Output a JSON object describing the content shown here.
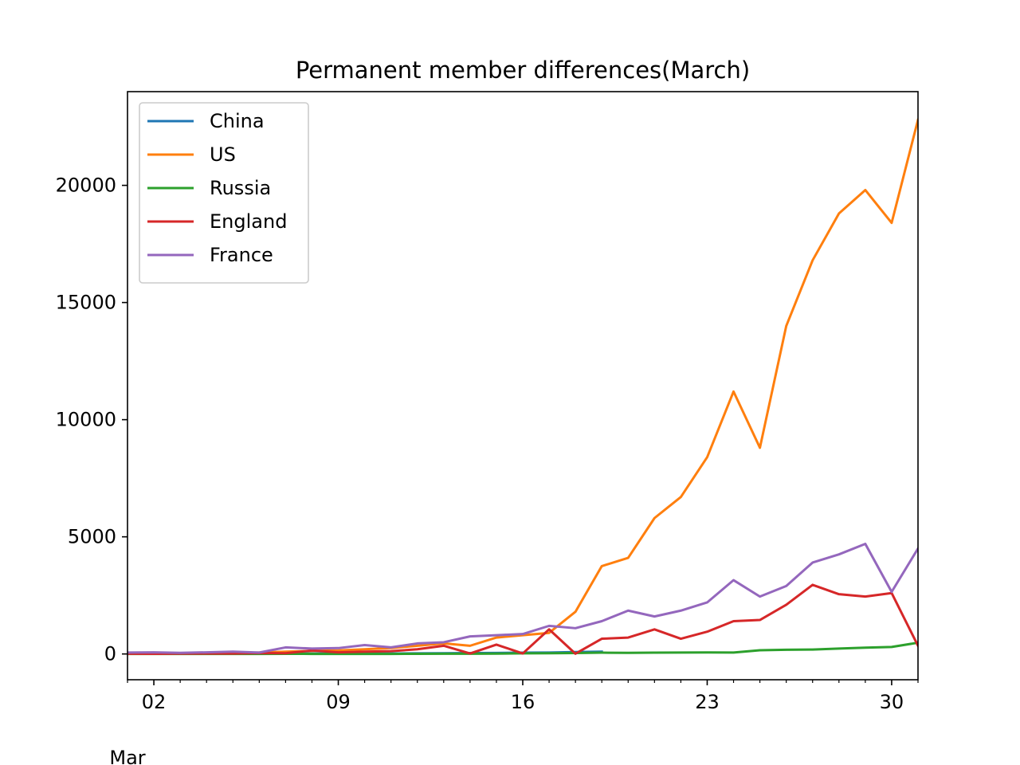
{
  "chart_data": {
    "type": "line",
    "title": "Permanent member differences(March)",
    "xlabel": "",
    "ylabel": "",
    "x_start_day": 1,
    "x_end_day": 31,
    "xlim": [
      1,
      31
    ],
    "ylim": [
      -1100,
      24000
    ],
    "x_major_ticks": [
      {
        "day": 2,
        "label": "02"
      },
      {
        "day": 9,
        "label": "09"
      },
      {
        "day": 16,
        "label": "16"
      },
      {
        "day": 23,
        "label": "23"
      },
      {
        "day": 30,
        "label": "30"
      }
    ],
    "x_month_label": "Mar",
    "y_ticks": [
      {
        "value": 0,
        "label": "0"
      },
      {
        "value": 5000,
        "label": "5000"
      },
      {
        "value": 10000,
        "label": "10000"
      },
      {
        "value": 15000,
        "label": "15000"
      },
      {
        "value": 20000,
        "label": "20000"
      }
    ],
    "grid": false,
    "legend_position": "upper-left",
    "series": [
      {
        "name": "China",
        "color": "#1f77b4",
        "x": [
          1,
          2,
          3,
          4,
          5,
          6,
          7,
          8,
          9,
          10,
          11,
          12,
          13,
          14,
          15,
          16,
          17,
          18,
          19
        ],
        "values": [
          31,
          33,
          29,
          27,
          25,
          20,
          15,
          18,
          19,
          22,
          20,
          25,
          30,
          40,
          45,
          55,
          60,
          80,
          100
        ]
      },
      {
        "name": "US",
        "color": "#ff7f0e",
        "x": [
          1,
          2,
          3,
          4,
          5,
          6,
          7,
          8,
          9,
          10,
          11,
          12,
          13,
          14,
          15,
          16,
          17,
          18,
          19,
          20,
          21,
          22,
          23,
          24,
          25,
          26,
          27,
          28,
          29,
          30,
          31
        ],
        "values": [
          5,
          10,
          15,
          25,
          40,
          60,
          100,
          130,
          150,
          200,
          250,
          350,
          450,
          350,
          700,
          800,
          900,
          1800,
          3750,
          4100,
          5800,
          6700,
          8400,
          11200,
          8800,
          14000,
          16800,
          18800,
          19800,
          18400,
          22800
        ]
      },
      {
        "name": "Russia",
        "color": "#2ca02c",
        "x": [
          1,
          2,
          3,
          4,
          5,
          6,
          7,
          8,
          9,
          10,
          11,
          12,
          13,
          14,
          15,
          16,
          17,
          18,
          19,
          20,
          21,
          22,
          23,
          24,
          25,
          26,
          27,
          28,
          29,
          30,
          31
        ],
        "values": [
          0,
          0,
          0,
          0,
          0,
          2,
          5,
          3,
          3,
          3,
          3,
          5,
          8,
          10,
          15,
          25,
          30,
          40,
          55,
          50,
          55,
          60,
          65,
          60,
          160,
          180,
          190,
          230,
          270,
          300,
          480
        ]
      },
      {
        "name": "England",
        "color": "#d62728",
        "x": [
          1,
          2,
          3,
          4,
          5,
          6,
          7,
          8,
          9,
          10,
          11,
          12,
          13,
          14,
          15,
          16,
          17,
          18,
          19,
          20,
          21,
          22,
          23,
          24,
          25,
          26,
          27,
          28,
          29,
          30,
          31
        ],
        "values": [
          10,
          5,
          15,
          20,
          20,
          40,
          30,
          150,
          70,
          100,
          120,
          200,
          350,
          20,
          400,
          20,
          1050,
          10,
          650,
          700,
          1050,
          650,
          950,
          1400,
          1450,
          2100,
          2950,
          2550,
          2450,
          2600,
          350
        ]
      },
      {
        "name": "France",
        "color": "#9467bd",
        "x": [
          1,
          2,
          3,
          4,
          5,
          6,
          7,
          8,
          9,
          10,
          11,
          12,
          13,
          14,
          15,
          16,
          17,
          18,
          19,
          20,
          21,
          22,
          23,
          24,
          25,
          26,
          27,
          28,
          29,
          30,
          31
        ],
        "values": [
          60,
          70,
          50,
          70,
          100,
          60,
          280,
          230,
          250,
          380,
          280,
          450,
          500,
          750,
          800,
          850,
          1200,
          1100,
          1400,
          1850,
          1600,
          1850,
          2200,
          3150,
          2450,
          2900,
          3900,
          4250,
          4700,
          2650,
          4500
        ]
      }
    ]
  }
}
